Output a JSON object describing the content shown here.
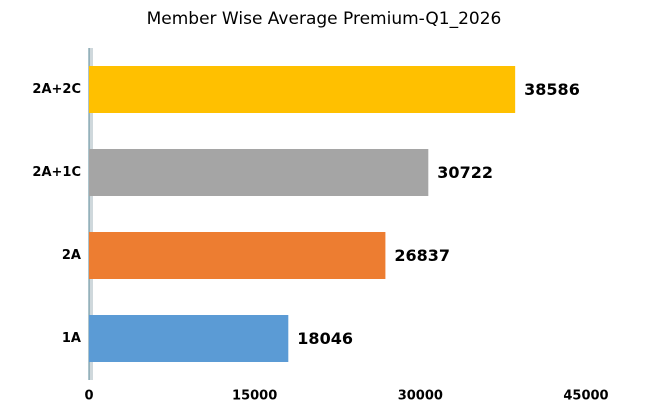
{
  "chart_data": {
    "type": "barh",
    "title": "Member Wise Average Premium-Q1_2026",
    "categories": [
      "2A+2C",
      "2A+1C",
      "2A",
      "1A"
    ],
    "values": [
      38586,
      30722,
      26837,
      18046
    ],
    "colors": [
      "#ffc000",
      "#a5a5a5",
      "#ed7d31",
      "#5b9bd5"
    ],
    "xlim": [
      0,
      45000
    ],
    "xticks": [
      0,
      15000,
      30000,
      45000
    ],
    "grid": false
  }
}
